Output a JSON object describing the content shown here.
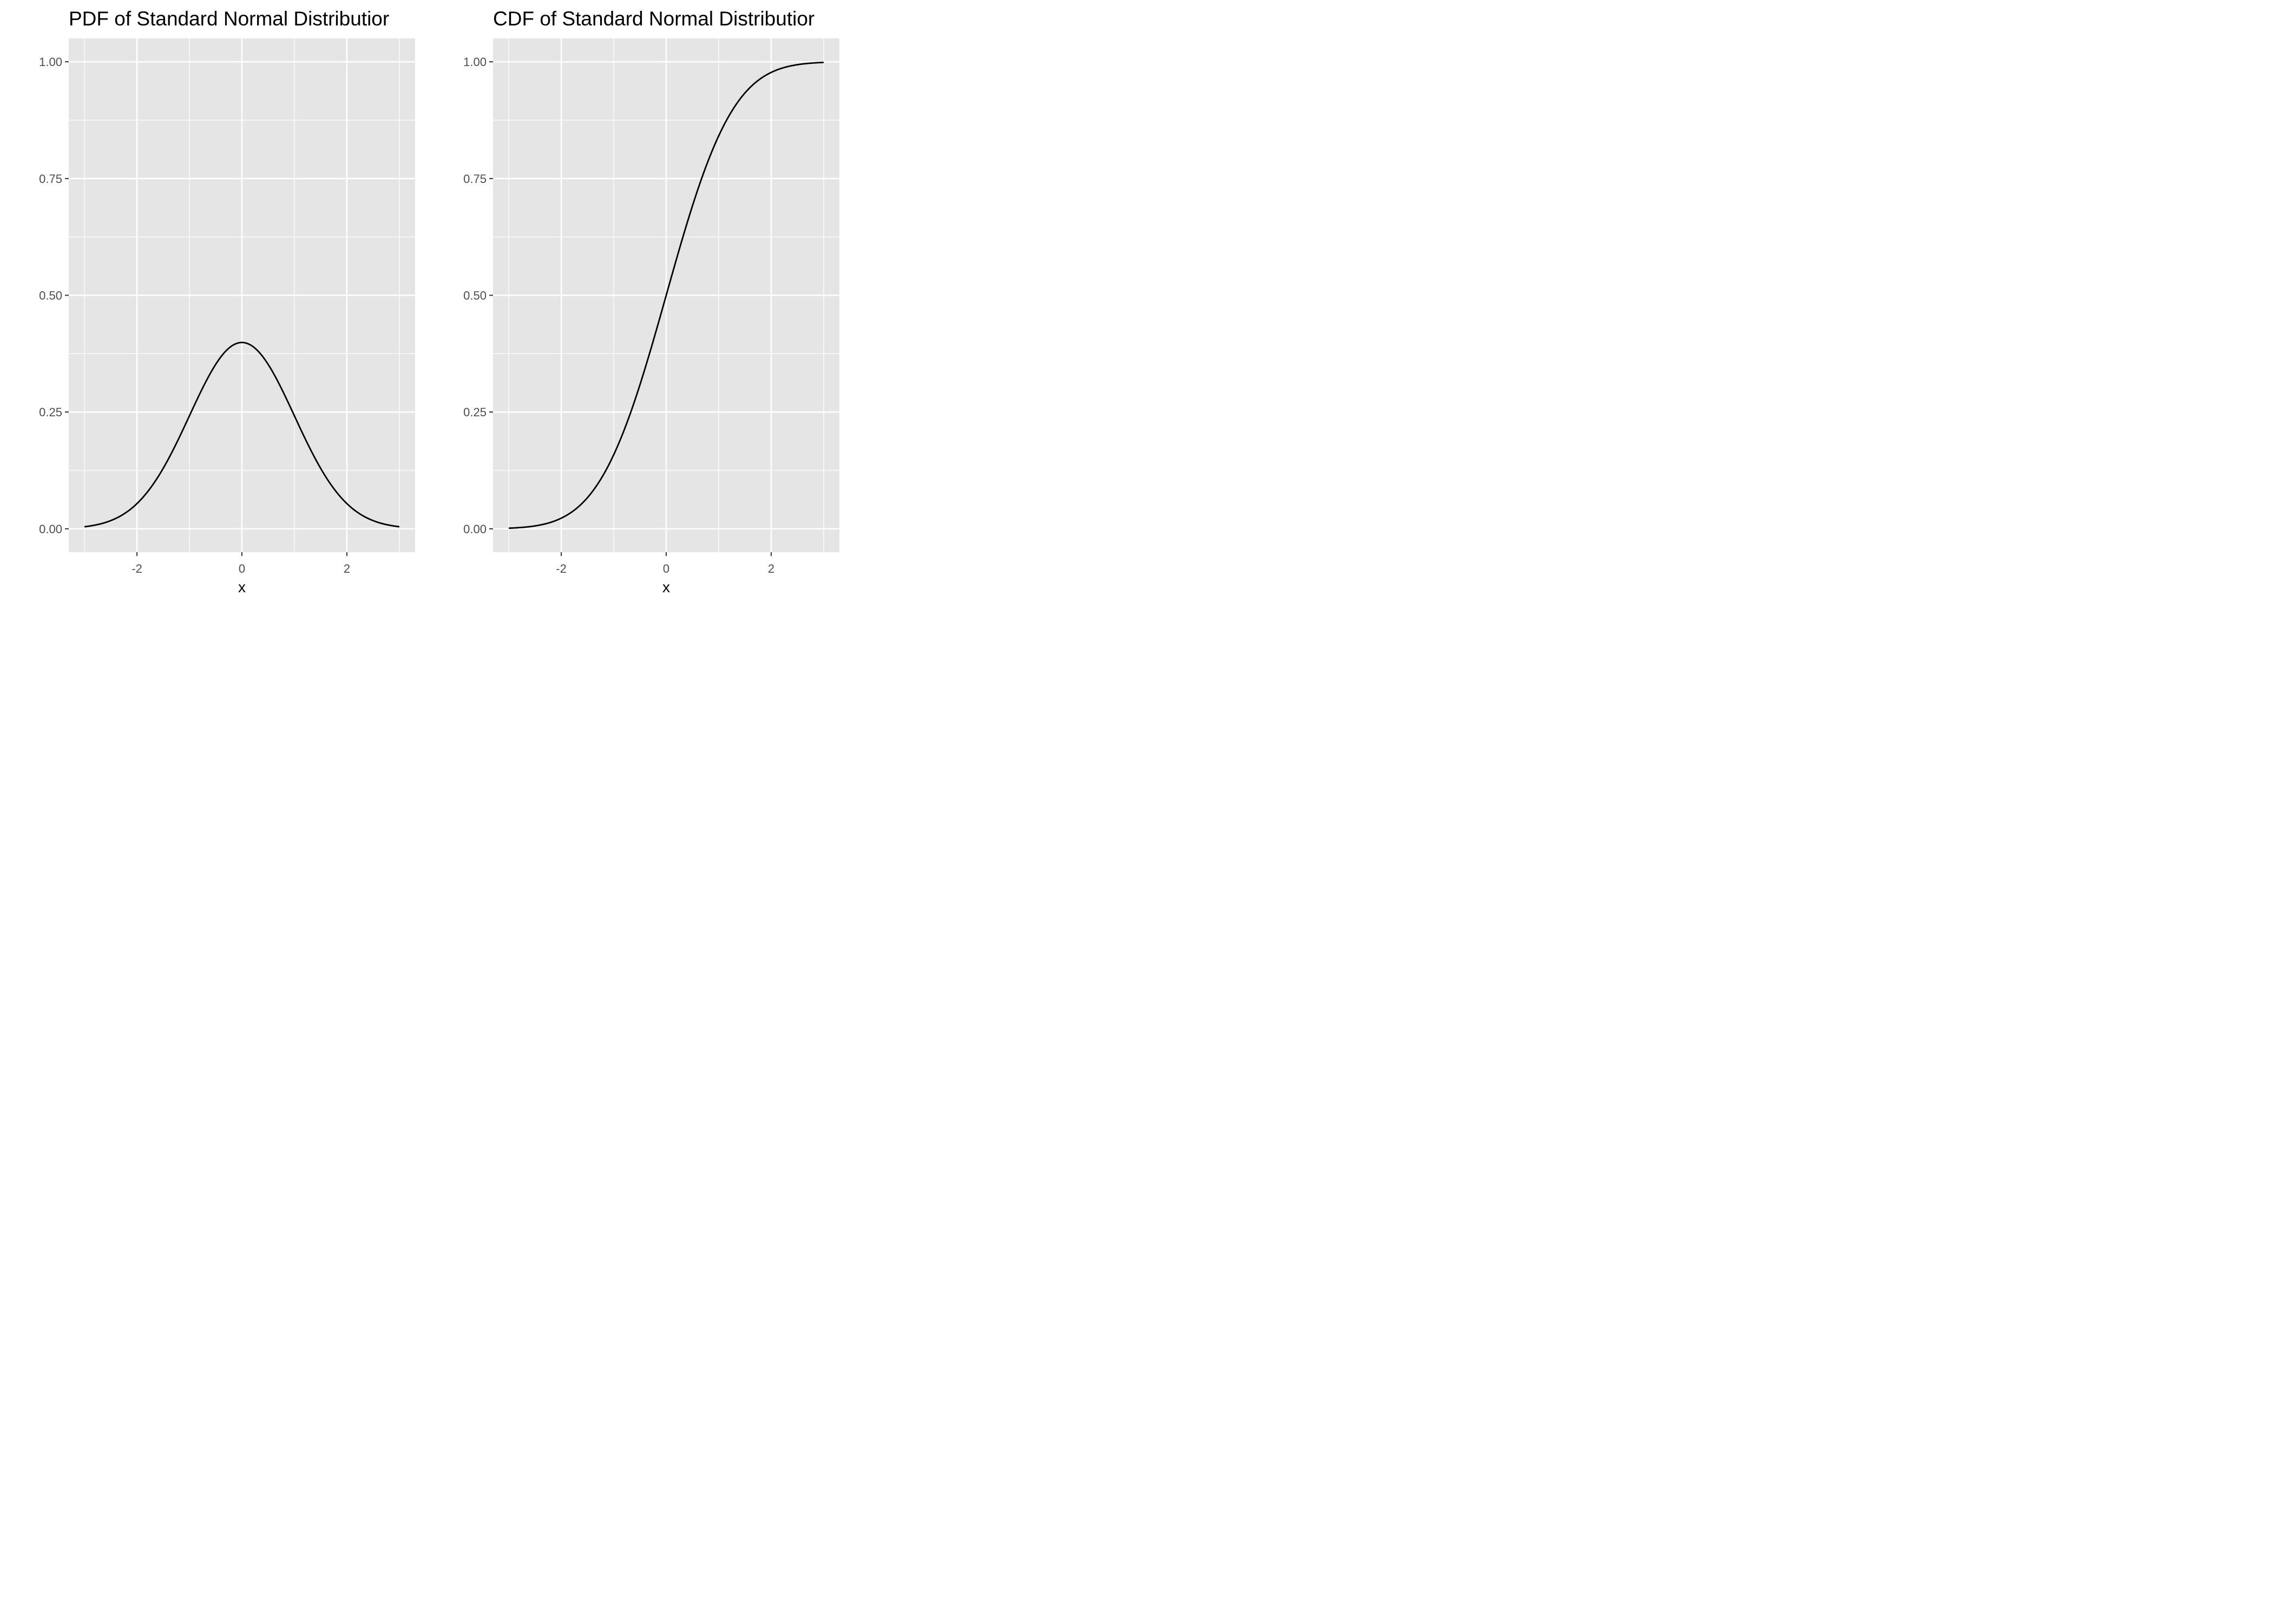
{
  "chart_data": [
    {
      "type": "line",
      "title": "PDF of Standard Normal Distributior",
      "xlabel": "x",
      "ylabel": "",
      "xlim": [
        -3.3,
        3.3
      ],
      "ylim": [
        -0.05,
        1.05
      ],
      "x_ticks": [
        -2,
        0,
        2
      ],
      "x_tick_labels": [
        "-2",
        "0",
        "2"
      ],
      "y_ticks": [
        0,
        0.25,
        0.5,
        0.75,
        1
      ],
      "y_tick_labels": [
        "0.00",
        "0.25",
        "0.50",
        "0.75",
        "1.00"
      ],
      "x_minor": [
        -3,
        -1,
        1,
        3
      ],
      "y_minor": [
        0.125,
        0.375,
        0.625,
        0.875
      ],
      "grid": true,
      "series": [
        {
          "function": "normal_pdf",
          "x": [
            -3.0,
            -2.5,
            -2.0,
            -1.5,
            -1.0,
            -0.5,
            0.0,
            0.5,
            1.0,
            1.5,
            2.0,
            2.5,
            3.0
          ],
          "values": [
            0.0044,
            0.0175,
            0.054,
            0.1295,
            0.242,
            0.3521,
            0.3989,
            0.3521,
            0.242,
            0.1295,
            0.054,
            0.0175,
            0.0044
          ]
        }
      ]
    },
    {
      "type": "line",
      "title": "CDF of Standard Normal Distributior",
      "xlabel": "x",
      "ylabel": "",
      "xlim": [
        -3.3,
        3.3
      ],
      "ylim": [
        -0.05,
        1.05
      ],
      "x_ticks": [
        -2,
        0,
        2
      ],
      "x_tick_labels": [
        "-2",
        "0",
        "2"
      ],
      "y_ticks": [
        0,
        0.25,
        0.5,
        0.75,
        1
      ],
      "y_tick_labels": [
        "0.00",
        "0.25",
        "0.50",
        "0.75",
        "1.00"
      ],
      "x_minor": [
        -3,
        -1,
        1,
        3
      ],
      "y_minor": [
        0.125,
        0.375,
        0.625,
        0.875
      ],
      "grid": true,
      "series": [
        {
          "function": "normal_cdf",
          "x": [
            -3.0,
            -2.5,
            -2.0,
            -1.5,
            -1.0,
            -0.5,
            0.0,
            0.5,
            1.0,
            1.5,
            2.0,
            2.5,
            3.0
          ],
          "values": [
            0.0013,
            0.0062,
            0.0228,
            0.0668,
            0.1587,
            0.3085,
            0.5,
            0.6915,
            0.8413,
            0.9332,
            0.9772,
            0.9938,
            0.9987
          ]
        }
      ]
    }
  ],
  "colors": {
    "panel_background": "#e5e5e5",
    "grid_line": "#ffffff",
    "curve": "#000000",
    "tick_label": "#4d4d4d",
    "tick_mark": "#333333"
  }
}
